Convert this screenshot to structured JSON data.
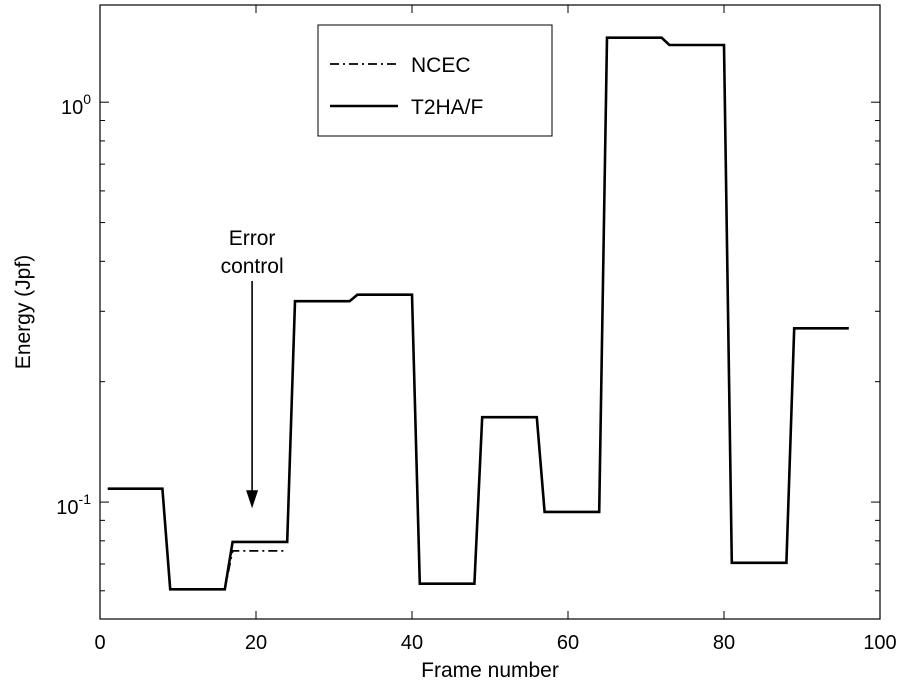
{
  "chart_data": {
    "type": "line",
    "title": "",
    "xlabel": "Frame number",
    "ylabel": "Energy (Jpf)",
    "xlim": [
      0,
      100
    ],
    "ylim": [
      0.051,
      1.75
    ],
    "yscale": "log",
    "grid": false,
    "legend_position": "top-center",
    "x_ticks": [
      0,
      20,
      40,
      60,
      80,
      100
    ],
    "x_tick_labels": [
      "0",
      "20",
      "40",
      "60",
      "80",
      "100"
    ],
    "y_ticks": [
      0.1,
      1
    ],
    "y_tick_labels": [
      {
        "base": "10",
        "exp": "-1"
      },
      {
        "base": "10",
        "exp": "0"
      }
    ],
    "series": [
      {
        "name": "NCEC",
        "line_style": "dash-dot",
        "color": "#000000",
        "x": [
          1,
          8,
          9,
          16,
          17,
          24
        ],
        "y": [
          0.108,
          0.108,
          0.0605,
          0.0605,
          0.0755,
          0.0755
        ]
      },
      {
        "name": "T2HA/F",
        "line_style": "solid",
        "color": "#000000",
        "x": [
          1,
          8,
          9,
          16,
          17,
          24,
          25,
          32,
          33,
          40,
          41,
          48,
          49,
          56,
          57,
          64,
          65,
          72,
          73,
          80,
          81,
          88,
          89,
          96
        ],
        "y": [
          0.108,
          0.108,
          0.0605,
          0.0605,
          0.0795,
          0.0795,
          0.318,
          0.318,
          0.33,
          0.33,
          0.0625,
          0.0625,
          0.163,
          0.163,
          0.0945,
          0.0945,
          1.45,
          1.45,
          1.39,
          1.39,
          0.0705,
          0.0705,
          0.272,
          0.272
        ]
      }
    ],
    "annotations": [
      {
        "lines": [
          "Error",
          "control"
        ],
        "arrow_to_x": 19.5,
        "arrow_to_y": 0.0965
      }
    ]
  }
}
